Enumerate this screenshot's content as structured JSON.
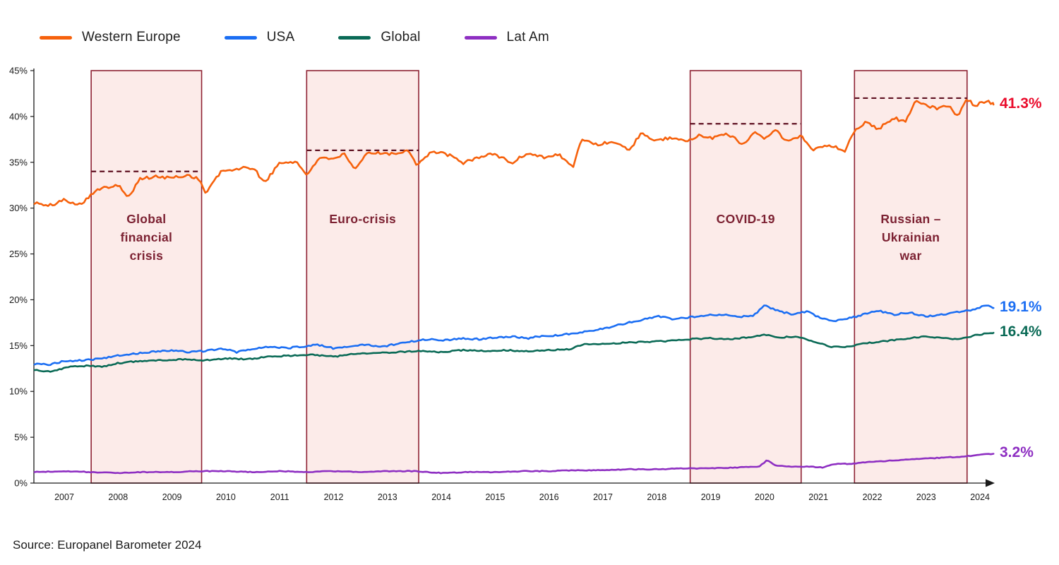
{
  "page": {
    "source_note": "Source: Europanel Barometer 2024"
  },
  "chart_data": {
    "type": "line",
    "title": "",
    "legend_position": "top-left",
    "grid": false,
    "x_axis": {
      "label": "",
      "ticks": [
        2007,
        2008,
        2009,
        2010,
        2011,
        2012,
        2013,
        2014,
        2015,
        2016,
        2017,
        2018,
        2019,
        2020,
        2021,
        2022,
        2023,
        2024
      ],
      "range": [
        2006.45,
        2024.3
      ]
    },
    "y_axis": {
      "label": "",
      "unit": "%",
      "tick_values": [
        0,
        5,
        10,
        15,
        20,
        25,
        30,
        35,
        40,
        45
      ],
      "range": [
        0,
        45
      ]
    },
    "colors": {
      "band_fill": "#fcebe9",
      "band_border": "#8e2233",
      "band_text": "#7c2132",
      "dashed_line": "#5f1222",
      "axis": "#1a1a1a"
    },
    "crisis_bands": [
      {
        "label_lines": [
          "Global",
          "financial",
          "crisis"
        ],
        "x_start": 2007.5,
        "x_end": 2009.55,
        "dashed_mean": 34.0
      },
      {
        "label_lines": [
          "Euro-crisis"
        ],
        "x_start": 2011.5,
        "x_end": 2013.58,
        "dashed_mean": 36.3
      },
      {
        "label_lines": [
          "COVID-19"
        ],
        "x_start": 2018.62,
        "x_end": 2020.68,
        "dashed_mean": 39.2
      },
      {
        "label_lines": [
          "Russian –",
          "Ukrainian",
          "war"
        ],
        "x_start": 2021.67,
        "x_end": 2023.76,
        "dashed_mean": 42.0
      }
    ],
    "series": [
      {
        "name": "Western Europe",
        "color": "#f6610c",
        "end_label": "41.3%",
        "end_label_color": "#ea0c2c",
        "noise": 0.18,
        "points": [
          [
            2006.45,
            30.6
          ],
          [
            2006.7,
            30.2
          ],
          [
            2007.0,
            30.9
          ],
          [
            2007.3,
            30.4
          ],
          [
            2007.55,
            31.8
          ],
          [
            2007.8,
            32.3
          ],
          [
            2008.0,
            32.6
          ],
          [
            2008.2,
            31.2
          ],
          [
            2008.4,
            33.2
          ],
          [
            2008.7,
            33.4
          ],
          [
            2009.0,
            33.3
          ],
          [
            2009.3,
            33.6
          ],
          [
            2009.5,
            33.2
          ],
          [
            2009.62,
            31.6
          ],
          [
            2009.9,
            33.9
          ],
          [
            2010.2,
            34.3
          ],
          [
            2010.5,
            34.4
          ],
          [
            2010.72,
            32.8
          ],
          [
            2011.0,
            34.9
          ],
          [
            2011.3,
            35.1
          ],
          [
            2011.5,
            33.6
          ],
          [
            2011.7,
            35.3
          ],
          [
            2012.0,
            35.5
          ],
          [
            2012.2,
            35.8
          ],
          [
            2012.4,
            34.1
          ],
          [
            2012.6,
            35.9
          ],
          [
            2012.9,
            36.1
          ],
          [
            2013.1,
            35.9
          ],
          [
            2013.4,
            36.3
          ],
          [
            2013.55,
            34.7
          ],
          [
            2013.8,
            36.1
          ],
          [
            2014.1,
            35.9
          ],
          [
            2014.4,
            34.9
          ],
          [
            2014.7,
            35.6
          ],
          [
            2015.0,
            35.9
          ],
          [
            2015.3,
            34.9
          ],
          [
            2015.6,
            36.0
          ],
          [
            2015.9,
            35.6
          ],
          [
            2016.2,
            35.8
          ],
          [
            2016.45,
            34.4
          ],
          [
            2016.6,
            37.6
          ],
          [
            2016.9,
            36.9
          ],
          [
            2017.2,
            37.3
          ],
          [
            2017.5,
            36.3
          ],
          [
            2017.7,
            38.2
          ],
          [
            2017.9,
            37.4
          ],
          [
            2018.2,
            37.6
          ],
          [
            2018.5,
            37.3
          ],
          [
            2018.8,
            37.9
          ],
          [
            2019.0,
            37.6
          ],
          [
            2019.3,
            38.2
          ],
          [
            2019.6,
            36.9
          ],
          [
            2019.8,
            38.3
          ],
          [
            2020.0,
            37.7
          ],
          [
            2020.2,
            38.6
          ],
          [
            2020.4,
            37.3
          ],
          [
            2020.7,
            37.8
          ],
          [
            2020.9,
            36.4
          ],
          [
            2021.2,
            36.9
          ],
          [
            2021.5,
            36.3
          ],
          [
            2021.7,
            38.7
          ],
          [
            2021.9,
            39.4
          ],
          [
            2022.1,
            38.6
          ],
          [
            2022.4,
            39.9
          ],
          [
            2022.6,
            39.4
          ],
          [
            2022.8,
            41.6
          ],
          [
            2023.0,
            41.2
          ],
          [
            2023.2,
            40.9
          ],
          [
            2023.4,
            41.3
          ],
          [
            2023.6,
            40.0
          ],
          [
            2023.75,
            42.0
          ],
          [
            2023.9,
            41.1
          ],
          [
            2024.1,
            41.7
          ],
          [
            2024.25,
            41.3
          ]
        ]
      },
      {
        "name": "USA",
        "color": "#1b6ef3",
        "end_label": "19.1%",
        "end_label_color": "#1b6ef3",
        "noise": 0.09,
        "points": [
          [
            2006.45,
            13.0
          ],
          [
            2006.7,
            12.9
          ],
          [
            2007.0,
            13.3
          ],
          [
            2007.3,
            13.4
          ],
          [
            2007.6,
            13.5
          ],
          [
            2008.0,
            13.9
          ],
          [
            2008.3,
            14.1
          ],
          [
            2008.6,
            14.3
          ],
          [
            2009.0,
            14.5
          ],
          [
            2009.3,
            14.3
          ],
          [
            2009.6,
            14.4
          ],
          [
            2009.9,
            14.7
          ],
          [
            2010.2,
            14.3
          ],
          [
            2010.5,
            14.6
          ],
          [
            2010.8,
            14.9
          ],
          [
            2011.1,
            14.7
          ],
          [
            2011.4,
            14.9
          ],
          [
            2011.7,
            15.1
          ],
          [
            2012.0,
            14.7
          ],
          [
            2012.3,
            14.9
          ],
          [
            2012.6,
            15.1
          ],
          [
            2012.9,
            14.9
          ],
          [
            2013.2,
            15.2
          ],
          [
            2013.5,
            15.5
          ],
          [
            2013.8,
            15.7
          ],
          [
            2014.1,
            15.6
          ],
          [
            2014.4,
            15.8
          ],
          [
            2014.7,
            15.7
          ],
          [
            2015.0,
            15.9
          ],
          [
            2015.3,
            16.0
          ],
          [
            2015.6,
            15.8
          ],
          [
            2015.9,
            16.1
          ],
          [
            2016.2,
            16.1
          ],
          [
            2016.5,
            16.4
          ],
          [
            2016.8,
            16.6
          ],
          [
            2017.1,
            17.0
          ],
          [
            2017.4,
            17.4
          ],
          [
            2017.7,
            17.8
          ],
          [
            2018.0,
            18.2
          ],
          [
            2018.3,
            17.9
          ],
          [
            2018.6,
            18.1
          ],
          [
            2018.9,
            18.3
          ],
          [
            2019.2,
            18.4
          ],
          [
            2019.5,
            18.1
          ],
          [
            2019.8,
            18.3
          ],
          [
            2020.0,
            19.4
          ],
          [
            2020.2,
            18.9
          ],
          [
            2020.5,
            18.4
          ],
          [
            2020.8,
            18.7
          ],
          [
            2021.0,
            18.1
          ],
          [
            2021.3,
            17.7
          ],
          [
            2021.6,
            18.0
          ],
          [
            2021.9,
            18.5
          ],
          [
            2022.1,
            18.8
          ],
          [
            2022.4,
            18.4
          ],
          [
            2022.7,
            18.6
          ],
          [
            2023.0,
            18.2
          ],
          [
            2023.3,
            18.4
          ],
          [
            2023.6,
            18.7
          ],
          [
            2023.9,
            18.9
          ],
          [
            2024.1,
            19.4
          ],
          [
            2024.25,
            19.1
          ]
        ]
      },
      {
        "name": "Global",
        "color": "#0a6a56",
        "end_label": "16.4%",
        "end_label_color": "#0a6a56",
        "noise": 0.07,
        "points": [
          [
            2006.45,
            12.3
          ],
          [
            2006.8,
            12.2
          ],
          [
            2007.1,
            12.7
          ],
          [
            2007.4,
            12.8
          ],
          [
            2007.7,
            12.7
          ],
          [
            2008.0,
            13.1
          ],
          [
            2008.4,
            13.3
          ],
          [
            2008.8,
            13.4
          ],
          [
            2009.2,
            13.5
          ],
          [
            2009.6,
            13.4
          ],
          [
            2010.0,
            13.6
          ],
          [
            2010.4,
            13.5
          ],
          [
            2010.8,
            13.8
          ],
          [
            2011.2,
            13.9
          ],
          [
            2011.6,
            14.0
          ],
          [
            2012.0,
            13.8
          ],
          [
            2012.4,
            14.1
          ],
          [
            2012.8,
            14.2
          ],
          [
            2013.2,
            14.3
          ],
          [
            2013.6,
            14.4
          ],
          [
            2014.0,
            14.3
          ],
          [
            2014.4,
            14.5
          ],
          [
            2014.8,
            14.4
          ],
          [
            2015.2,
            14.5
          ],
          [
            2015.6,
            14.4
          ],
          [
            2016.0,
            14.5
          ],
          [
            2016.4,
            14.6
          ],
          [
            2016.6,
            15.1
          ],
          [
            2017.0,
            15.2
          ],
          [
            2017.4,
            15.3
          ],
          [
            2017.8,
            15.4
          ],
          [
            2018.2,
            15.5
          ],
          [
            2018.6,
            15.7
          ],
          [
            2019.0,
            15.8
          ],
          [
            2019.4,
            15.7
          ],
          [
            2019.8,
            16.0
          ],
          [
            2020.0,
            16.2
          ],
          [
            2020.3,
            15.9
          ],
          [
            2020.6,
            16.0
          ],
          [
            2020.9,
            15.5
          ],
          [
            2021.2,
            14.9
          ],
          [
            2021.5,
            14.8
          ],
          [
            2021.8,
            15.2
          ],
          [
            2022.1,
            15.4
          ],
          [
            2022.4,
            15.6
          ],
          [
            2022.7,
            15.8
          ],
          [
            2023.0,
            16.0
          ],
          [
            2023.3,
            15.8
          ],
          [
            2023.6,
            15.7
          ],
          [
            2023.9,
            16.1
          ],
          [
            2024.1,
            16.3
          ],
          [
            2024.25,
            16.4
          ]
        ]
      },
      {
        "name": "Lat Am",
        "color": "#8e2fc2",
        "end_label": "3.2%",
        "end_label_color": "#8e2fc2",
        "noise": 0.04,
        "points": [
          [
            2006.45,
            1.2
          ],
          [
            2007.0,
            1.3
          ],
          [
            2007.5,
            1.2
          ],
          [
            2008.0,
            1.1
          ],
          [
            2008.5,
            1.2
          ],
          [
            2009.0,
            1.2
          ],
          [
            2009.5,
            1.3
          ],
          [
            2010.0,
            1.3
          ],
          [
            2010.5,
            1.2
          ],
          [
            2011.0,
            1.3
          ],
          [
            2011.5,
            1.2
          ],
          [
            2012.0,
            1.3
          ],
          [
            2012.5,
            1.2
          ],
          [
            2013.0,
            1.3
          ],
          [
            2013.5,
            1.3
          ],
          [
            2014.0,
            1.1
          ],
          [
            2014.5,
            1.2
          ],
          [
            2015.0,
            1.2
          ],
          [
            2015.5,
            1.3
          ],
          [
            2016.0,
            1.3
          ],
          [
            2016.5,
            1.4
          ],
          [
            2017.0,
            1.4
          ],
          [
            2017.5,
            1.5
          ],
          [
            2018.0,
            1.5
          ],
          [
            2018.5,
            1.6
          ],
          [
            2019.0,
            1.6
          ],
          [
            2019.5,
            1.7
          ],
          [
            2019.9,
            1.8
          ],
          [
            2020.05,
            2.5
          ],
          [
            2020.2,
            1.9
          ],
          [
            2020.5,
            1.8
          ],
          [
            2020.8,
            1.8
          ],
          [
            2021.1,
            1.7
          ],
          [
            2021.3,
            2.1
          ],
          [
            2021.6,
            2.1
          ],
          [
            2021.9,
            2.3
          ],
          [
            2022.2,
            2.4
          ],
          [
            2022.5,
            2.5
          ],
          [
            2022.8,
            2.6
          ],
          [
            2023.1,
            2.7
          ],
          [
            2023.4,
            2.8
          ],
          [
            2023.7,
            2.9
          ],
          [
            2024.0,
            3.1
          ],
          [
            2024.25,
            3.2
          ]
        ]
      }
    ]
  }
}
